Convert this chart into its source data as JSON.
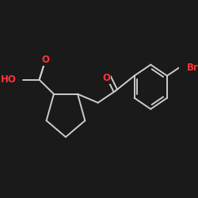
{
  "background_color": "#1a1a1a",
  "bond_color": "#cccccc",
  "atom_colors": {
    "O": "#ff3333",
    "Br": "#ff3333",
    "C": "#cccccc"
  },
  "figsize": [
    2.5,
    2.5
  ],
  "dpi": 100,
  "lw": 1.4,
  "fontsize": 8.5
}
